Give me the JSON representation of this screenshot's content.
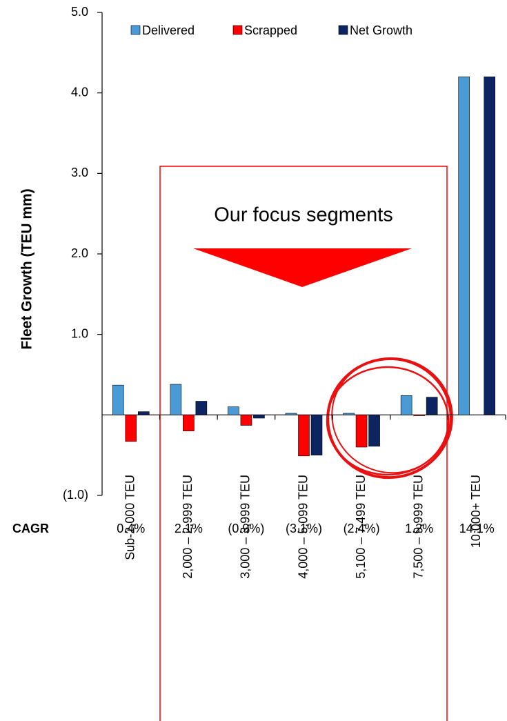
{
  "chart_data": {
    "type": "bar",
    "y_axis_label": "Fleet Growth (TEU mm)",
    "categories": [
      "Sub-2,000 TEU",
      "2,000 – 2,999 TEU",
      "3,000 – 3,999 TEU",
      "4,000 – 5,099 TEU",
      "5,100 – 7,499 TEU",
      "7,500 – 9,999 TEU",
      "10,000+ TEU"
    ],
    "series": [
      {
        "name": "Delivered",
        "color": "#4a9ad6",
        "values": [
          0.37,
          0.38,
          0.1,
          0.02,
          0.02,
          0.24,
          4.2
        ]
      },
      {
        "name": "Scrapped",
        "color": "#ff0000",
        "values": [
          -0.33,
          -0.2,
          -0.13,
          -0.51,
          -0.4,
          -0.01,
          0
        ]
      },
      {
        "name": "Net Growth",
        "color": "#0c2462",
        "values": [
          0.04,
          0.17,
          -0.04,
          -0.5,
          -0.39,
          0.22,
          4.2
        ]
      }
    ],
    "ylim": [
      -1,
      5
    ],
    "yticks": [
      {
        "value": -1,
        "label": "(1.0)"
      },
      {
        "value": 1,
        "label": "1.0"
      },
      {
        "value": 2,
        "label": "2.0"
      },
      {
        "value": 3,
        "label": "3.0"
      },
      {
        "value": 4,
        "label": "4.0"
      },
      {
        "value": 5,
        "label": "5.0"
      }
    ],
    "cagr": {
      "label": "CAGR",
      "values": [
        0.4,
        2.1,
        -0.9,
        -3.1,
        -2.4,
        1.2,
        14.1
      ],
      "value_labels": [
        "0.4%",
        "2.1%",
        "(0.9%)",
        "(3.1%)",
        "(2.4%)",
        "1.2%",
        "14.1%"
      ]
    },
    "annotation": "Our focus segments",
    "legend": "top"
  }
}
